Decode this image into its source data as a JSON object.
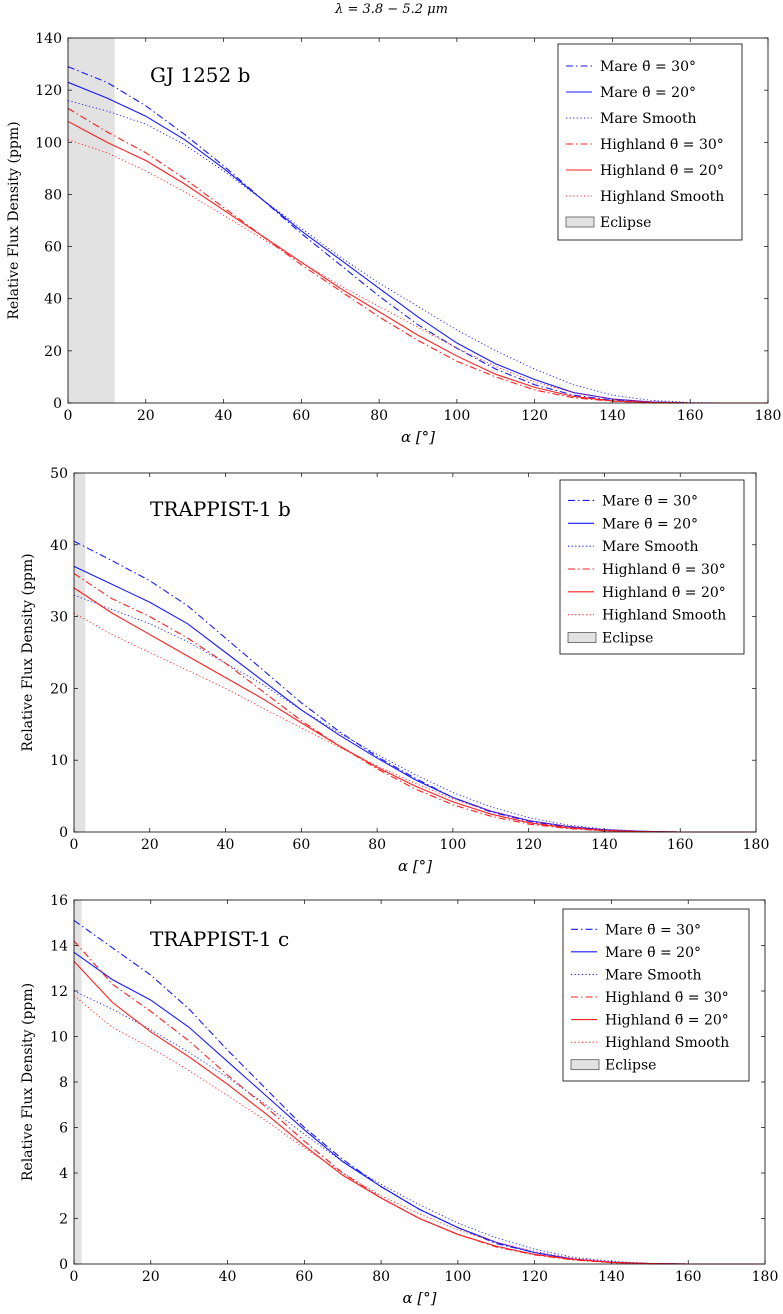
{
  "figure_title": "λ = 3.8 − 5.2 μm",
  "colors": {
    "mare": "#1a1aff",
    "highland": "#ff2020",
    "eclipse_fill": "#e2e2e2"
  },
  "legend_labels": [
    "Mare θ̄ = 30°",
    "Mare θ̄ = 20°",
    "Mare Smooth",
    "Highland θ̄ = 30°",
    "Highland θ̄ = 20°",
    "Highland Smooth",
    "Eclipse"
  ],
  "chart_data": [
    {
      "type": "line",
      "title": "GJ 1252 b",
      "xlabel": "α [°]",
      "ylabel": "Relative Flux Density (ppm)",
      "xlim": [
        0,
        180
      ],
      "ylim": [
        0,
        140
      ],
      "xticks": [
        0,
        20,
        40,
        60,
        80,
        100,
        120,
        140,
        160,
        180
      ],
      "yticks": [
        0,
        20,
        40,
        60,
        80,
        100,
        120,
        140
      ],
      "legend_position": "top-right",
      "eclipse": [
        0,
        12
      ],
      "x": [
        0,
        10,
        20,
        30,
        40,
        50,
        60,
        70,
        80,
        90,
        100,
        110,
        120,
        130,
        140,
        150,
        160,
        170,
        180
      ],
      "series": [
        {
          "name": "Mare θ̄ = 30°",
          "group": "mare",
          "style": "dashdot",
          "values": [
            129,
            123,
            114,
            103,
            91,
            78,
            65,
            53,
            41,
            30,
            21,
            13,
            7,
            3,
            1,
            0.3,
            0,
            0,
            0
          ]
        },
        {
          "name": "Mare θ̄ = 20°",
          "group": "mare",
          "style": "solid",
          "values": [
            123,
            117,
            110,
            101,
            90,
            78,
            66,
            55,
            44,
            33,
            23,
            15,
            9,
            4,
            1.5,
            0.4,
            0,
            0,
            0
          ]
        },
        {
          "name": "Mare Smooth",
          "group": "mare",
          "style": "dotted",
          "values": [
            116,
            112,
            107,
            99,
            89,
            78,
            67,
            56,
            46,
            37,
            28,
            20,
            13,
            7,
            3,
            1,
            0.2,
            0,
            0
          ]
        },
        {
          "name": "Highland θ̄ = 30°",
          "group": "highland",
          "style": "dashdot",
          "values": [
            113,
            104,
            96,
            86,
            75,
            64,
            53,
            43,
            33,
            24,
            16,
            10,
            5,
            2,
            0.7,
            0.1,
            0,
            0,
            0
          ]
        },
        {
          "name": "Highland θ̄ = 20°",
          "group": "highland",
          "style": "solid",
          "values": [
            108,
            100,
            93,
            84,
            74,
            64,
            54,
            44,
            35,
            26,
            18,
            11,
            6,
            2.5,
            0.8,
            0.2,
            0,
            0,
            0
          ]
        },
        {
          "name": "Highland Smooth",
          "group": "highland",
          "style": "dotted",
          "values": [
            101,
            96,
            89,
            81,
            72,
            63,
            54,
            45,
            37,
            29,
            21,
            14,
            8,
            4,
            1.5,
            0.4,
            0,
            0,
            0
          ]
        }
      ]
    },
    {
      "type": "line",
      "title": "TRAPPIST-1 b",
      "xlabel": "α [°]",
      "ylabel": "Relative Flux Density (ppm)",
      "xlim": [
        0,
        180
      ],
      "ylim": [
        0,
        50
      ],
      "xticks": [
        0,
        20,
        40,
        60,
        80,
        100,
        120,
        140,
        160,
        180
      ],
      "yticks": [
        0,
        10,
        20,
        30,
        40,
        50
      ],
      "legend_position": "top-right",
      "eclipse": [
        0,
        3
      ],
      "x": [
        0,
        10,
        20,
        30,
        40,
        50,
        60,
        70,
        80,
        90,
        100,
        110,
        120,
        130,
        140,
        150,
        160,
        170,
        180
      ],
      "series": [
        {
          "name": "Mare θ̄ = 30°",
          "group": "mare",
          "style": "dashdot",
          "values": [
            40.5,
            37.8,
            35,
            31.5,
            27,
            22.5,
            18,
            14,
            10.5,
            7.5,
            4.8,
            2.8,
            1.5,
            0.7,
            0.2,
            0.05,
            0,
            0,
            0
          ]
        },
        {
          "name": "Mare θ̄ = 20°",
          "group": "mare",
          "style": "solid",
          "values": [
            37,
            34.5,
            32,
            29,
            25,
            21,
            17,
            13.5,
            10.3,
            7.3,
            4.8,
            2.9,
            1.6,
            0.8,
            0.3,
            0.1,
            0,
            0,
            0
          ]
        },
        {
          "name": "Mare Smooth",
          "group": "mare",
          "style": "dotted",
          "values": [
            33,
            31,
            29,
            26.5,
            23.5,
            20.5,
            17,
            13.8,
            10.8,
            8,
            5.5,
            3.5,
            2,
            1,
            0.4,
            0.1,
            0,
            0,
            0
          ]
        },
        {
          "name": "Highland θ̄ = 30°",
          "group": "highland",
          "style": "dashdot",
          "values": [
            36,
            32.5,
            30,
            27,
            23.5,
            19.5,
            15.5,
            12,
            8.8,
            6,
            3.8,
            2.2,
            1.1,
            0.5,
            0.15,
            0.03,
            0,
            0,
            0
          ]
        },
        {
          "name": "Highland θ̄ = 20°",
          "group": "highland",
          "style": "solid",
          "values": [
            34,
            30.5,
            27.5,
            24.5,
            21.5,
            18.5,
            15.2,
            12,
            9,
            6.4,
            4.2,
            2.5,
            1.3,
            0.6,
            0.2,
            0.05,
            0,
            0,
            0
          ]
        },
        {
          "name": "Highland Smooth",
          "group": "highland",
          "style": "dotted",
          "values": [
            30.5,
            27.5,
            25,
            22.5,
            20,
            17.2,
            14.5,
            11.8,
            9.2,
            6.8,
            4.6,
            2.9,
            1.6,
            0.8,
            0.3,
            0.1,
            0,
            0,
            0
          ]
        }
      ]
    },
    {
      "type": "line",
      "title": "TRAPPIST-1 c",
      "xlabel": "α [°]",
      "ylabel": "Relative Flux Density (ppm)",
      "xlim": [
        0,
        180
      ],
      "ylim": [
        0,
        16
      ],
      "xticks": [
        0,
        20,
        40,
        60,
        80,
        100,
        120,
        140,
        160,
        180
      ],
      "yticks": [
        0,
        2,
        4,
        6,
        8,
        10,
        12,
        14,
        16
      ],
      "legend_position": "top-right",
      "eclipse": [
        0,
        2
      ],
      "x": [
        0,
        10,
        20,
        30,
        40,
        50,
        60,
        70,
        80,
        90,
        100,
        110,
        120,
        130,
        140,
        150,
        160,
        170,
        180
      ],
      "series": [
        {
          "name": "Mare θ̄ = 30°",
          "group": "mare",
          "style": "dashdot",
          "values": [
            15.1,
            13.9,
            12.7,
            11.2,
            9.4,
            7.7,
            6,
            4.6,
            3.4,
            2.4,
            1.6,
            0.9,
            0.5,
            0.2,
            0.07,
            0.02,
            0,
            0,
            0
          ]
        },
        {
          "name": "Mare θ̄ = 20°",
          "group": "mare",
          "style": "solid",
          "values": [
            13.7,
            12.5,
            11.6,
            10.4,
            8.9,
            7.4,
            5.9,
            4.5,
            3.4,
            2.4,
            1.6,
            0.95,
            0.5,
            0.22,
            0.08,
            0.02,
            0,
            0,
            0
          ]
        },
        {
          "name": "Mare Smooth",
          "group": "mare",
          "style": "dotted",
          "values": [
            12,
            11.2,
            10.3,
            9.3,
            8.2,
            7,
            5.7,
            4.5,
            3.5,
            2.6,
            1.8,
            1.15,
            0.65,
            0.3,
            0.12,
            0.03,
            0,
            0,
            0
          ]
        },
        {
          "name": "Highland θ̄ = 30°",
          "group": "highland",
          "style": "dashdot",
          "values": [
            14.2,
            12.3,
            11.1,
            9.8,
            8.3,
            6.9,
            5.4,
            4,
            2.9,
            2,
            1.3,
            0.75,
            0.4,
            0.18,
            0.06,
            0.01,
            0,
            0,
            0
          ]
        },
        {
          "name": "Highland θ̄ = 20°",
          "group": "highland",
          "style": "solid",
          "values": [
            13.3,
            11.5,
            10.2,
            9.1,
            7.9,
            6.6,
            5.2,
            3.9,
            2.9,
            2,
            1.3,
            0.78,
            0.42,
            0.2,
            0.07,
            0.02,
            0,
            0,
            0
          ]
        },
        {
          "name": "Highland Smooth",
          "group": "highland",
          "style": "dotted",
          "values": [
            11.8,
            10.4,
            9.5,
            8.5,
            7.4,
            6.3,
            5.1,
            4,
            3,
            2.2,
            1.5,
            0.95,
            0.55,
            0.25,
            0.09,
            0.02,
            0,
            0,
            0
          ]
        }
      ]
    }
  ]
}
